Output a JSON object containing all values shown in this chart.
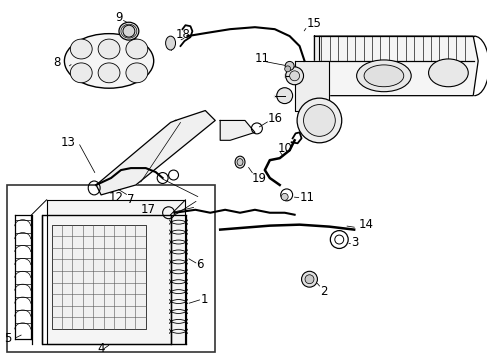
{
  "background_color": "#ffffff",
  "line_color": "#000000",
  "figsize": [
    4.89,
    3.6
  ],
  "dpi": 100,
  "font_size": 8.5
}
